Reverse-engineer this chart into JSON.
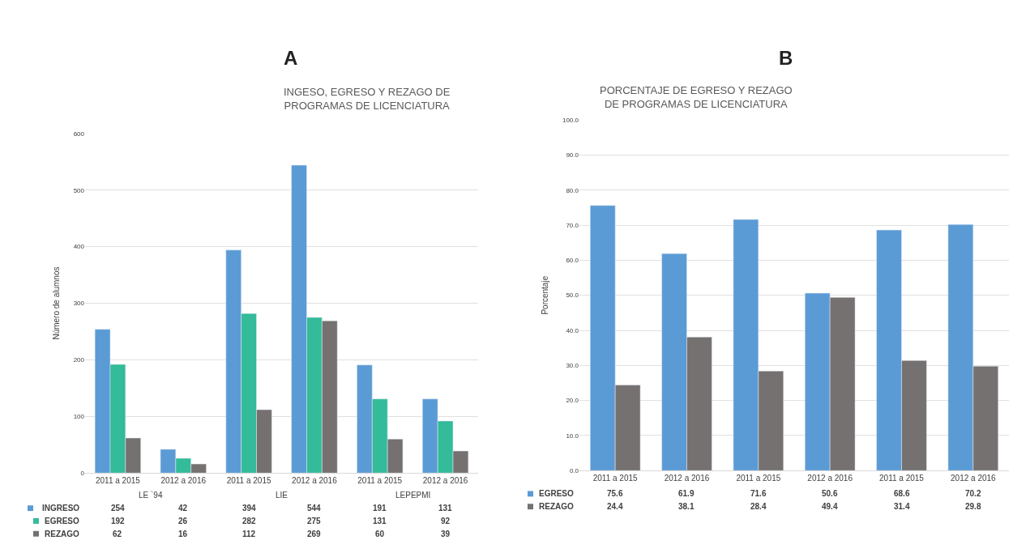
{
  "chart_data": [
    {
      "type": "bar",
      "title": "INGESO, EGRESO Y REZAGO DE\nPROGRAMAS DE LICENCIATURA",
      "ylabel": "Número de alumnos",
      "categories": [
        "2011 a 2015",
        "2012 a 2016",
        "2011 a 2015",
        "2012 a 2016",
        "2011 a 2015",
        "2012 a 2016"
      ],
      "series": [
        {
          "name": "INGRESO",
          "color": "#5b9bd5",
          "values": [
            254,
            42,
            394,
            544,
            191,
            131
          ]
        },
        {
          "name": "EGRESO",
          "color": "#33bb9a",
          "values": [
            192,
            26,
            282,
            275,
            131,
            92
          ]
        },
        {
          "name": "REZAGO",
          "color": "#767171",
          "values": [
            62,
            16,
            112,
            269,
            60,
            39
          ]
        }
      ],
      "annotations": [
        "A",
        "LE `94",
        "LIE",
        "LEPEPMI"
      ],
      "ylim": [
        0,
        600
      ],
      "yticks": [
        0,
        100,
        200,
        300,
        400,
        500,
        600
      ],
      "grid": "y",
      "data_labels": true,
      "legend": "bottom left"
    },
    {
      "type": "bar",
      "title": "PORCENTAJE DE EGRESO Y REZAGO\nDE PROGRAMAS DE LICENCIATURA",
      "ylabel": "Porcentaje",
      "categories": [
        "2011 a 2015",
        "2012 a 2016",
        "2011 a 2015",
        "2012 a 2016",
        "2011 a 2015",
        "2012 a 2016"
      ],
      "series": [
        {
          "name": "EGRESO",
          "color": "#5b9bd5",
          "values": [
            75.6,
            61.9,
            71.6,
            50.6,
            68.6,
            70.2
          ]
        },
        {
          "name": "REZAGO",
          "color": "#767171",
          "values": [
            24.4,
            38.1,
            28.4,
            49.4,
            31.4,
            29.8
          ]
        }
      ],
      "annotations": [
        "B"
      ],
      "ylim": [
        0,
        100
      ],
      "yticks": [
        {
          "value": 0,
          "label": "0.0"
        },
        {
          "value": 10,
          "label": "10.0"
        },
        {
          "value": 20,
          "label": "20.0"
        },
        {
          "value": 30,
          "label": "30.0"
        },
        {
          "value": 40,
          "label": "40.0"
        },
        {
          "value": 50,
          "label": "50.0"
        },
        {
          "value": 60,
          "label": "60.0"
        },
        {
          "value": 70,
          "label": "70.0"
        },
        {
          "value": 80,
          "label": "80.0"
        },
        {
          "value": 90,
          "label": "90.0"
        },
        {
          "value": 100,
          "label": "100.0"
        }
      ],
      "grid": "y",
      "data_labels": true,
      "legend": "bottom left"
    }
  ]
}
